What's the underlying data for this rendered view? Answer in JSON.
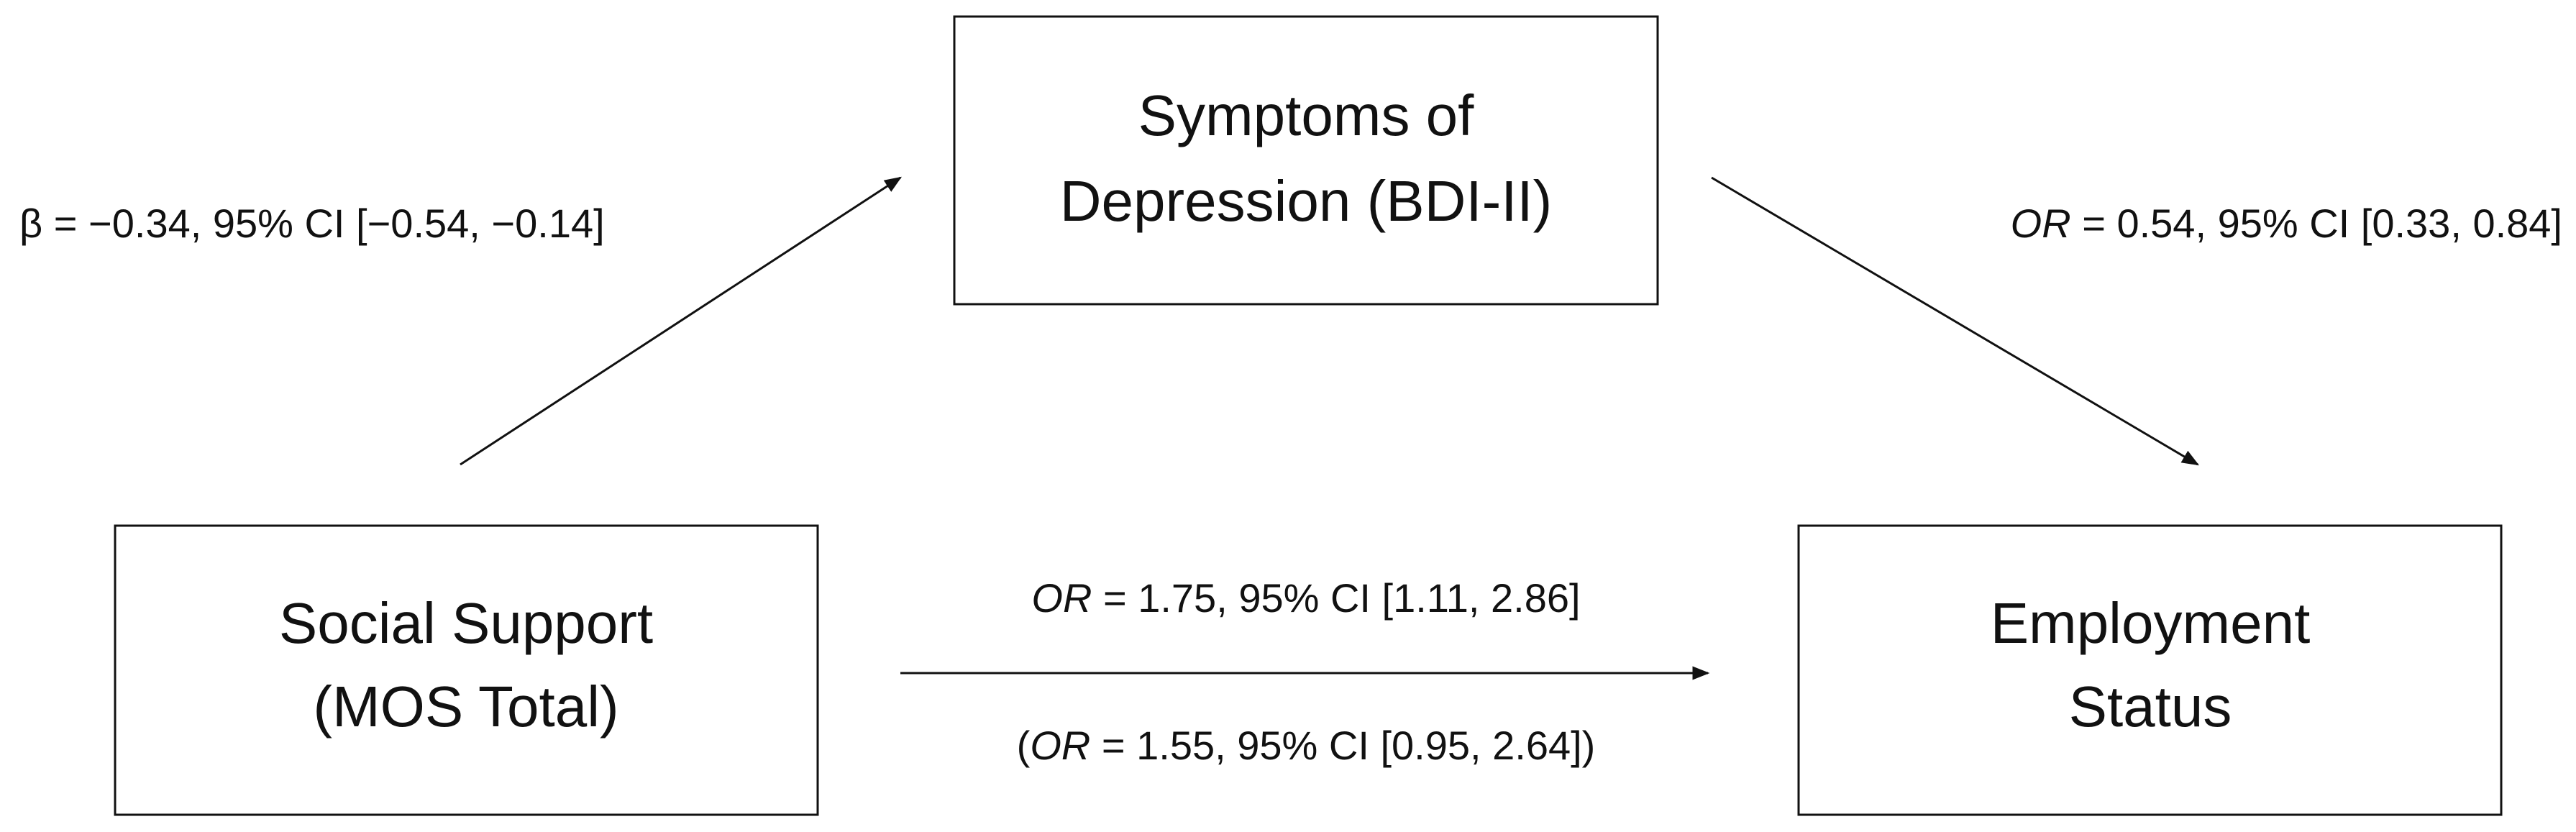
{
  "nodes": [
    {
      "label": [
        "Symptoms of",
        "Depression (BDI-II)"
      ]
    },
    {
      "label": [
        "Social Support",
        "(MOS Total)"
      ]
    },
    {
      "label": [
        "Employment",
        "Status"
      ]
    }
  ],
  "edges": [
    {
      "label": [
        {
          "text": "β = −0.34, 95% CI [−0.54, −0.14]",
          "italic": false
        }
      ]
    },
    {
      "label": [
        {
          "text": "OR",
          "italic": true
        },
        {
          "text": " = 0.54, 95% CI [0.33, 0.84]",
          "italic": false
        }
      ]
    },
    {
      "label": [
        {
          "text": "OR",
          "italic": true
        },
        {
          "text": " = 1.75, 95% CI [1.11, 2.86]",
          "italic": false
        }
      ],
      "label_adjusted": [
        {
          "text": "(",
          "italic": false
        },
        {
          "text": "OR",
          "italic": true
        },
        {
          "text": " = 1.55, 95% CI [0.95, 2.64])",
          "italic": false
        }
      ]
    }
  ]
}
